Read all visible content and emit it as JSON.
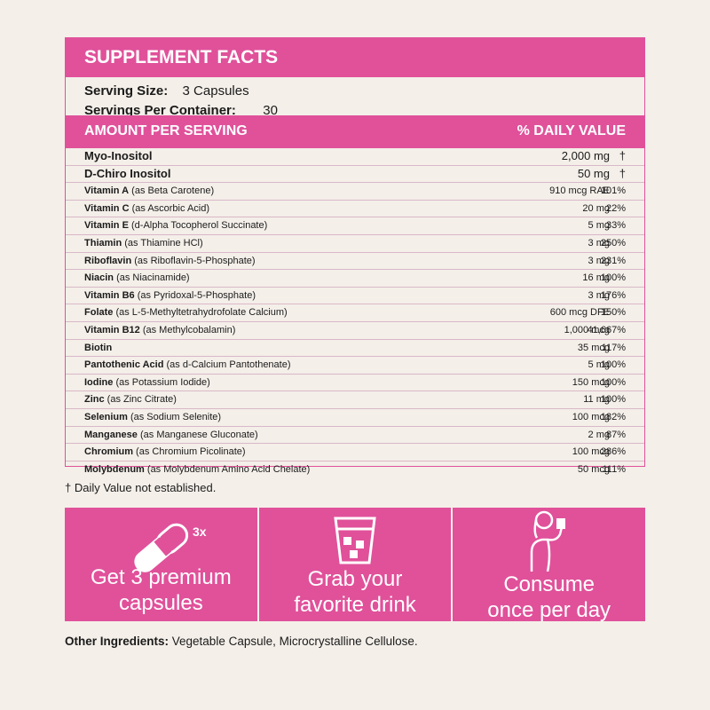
{
  "title": "SUPPLEMENT FACTS",
  "serving": {
    "size_label": "Serving Size:",
    "size_value": "3 Capsules",
    "per_container_label": "Servings Per Container:",
    "per_container_value": "30"
  },
  "columns": {
    "amount": "AMOUNT PER SERVING",
    "daily_value": "% DAILY VALUE"
  },
  "nutrients": [
    {
      "name": "Myo-Inositol",
      "detail": "",
      "amount": "2,000 mg",
      "dv": "†"
    },
    {
      "name": "D-Chiro Inositol",
      "detail": "",
      "amount": "50 mg",
      "dv": "†"
    },
    {
      "name": "Vitamin A",
      "detail": " (as Beta Carotene)",
      "amount": "910 mcg RAE",
      "dv": "101%"
    },
    {
      "name": "Vitamin C",
      "detail": " (as Ascorbic Acid)",
      "amount": "20 mg",
      "dv": "22%"
    },
    {
      "name": "Vitamin E",
      "detail": " (d-Alpha Tocopherol Succinate)",
      "amount": "5 mg",
      "dv": "33%"
    },
    {
      "name": "Thiamin",
      "detail": " (as Thiamine HCl)",
      "amount": "3 mg",
      "dv": "250%"
    },
    {
      "name": "Riboflavin",
      "detail": " (as Riboflavin-5-Phosphate)",
      "amount": "3 mg",
      "dv": "231%"
    },
    {
      "name": "Niacin",
      "detail": " (as Niacinamide)",
      "amount": "16 mg",
      "dv": "100%"
    },
    {
      "name": "Vitamin B6",
      "detail": " (as Pyridoxal-5-Phosphate)",
      "amount": "3 mg",
      "dv": "176%"
    },
    {
      "name": "Folate",
      "detail": " (as L-5-Methyltetrahydrofolate Calcium)",
      "amount": "600 mcg DFE",
      "dv": "150%"
    },
    {
      "name": "Vitamin B12",
      "detail": " (as Methylcobalamin)",
      "amount": "1,000 mcg",
      "dv": "41,667%"
    },
    {
      "name": "Biotin",
      "detail": "",
      "amount": "35 mcg",
      "dv": "117%"
    },
    {
      "name": "Pantothenic Acid",
      "detail": " (as d-Calcium Pantothenate)",
      "amount": "5 mg",
      "dv": "100%"
    },
    {
      "name": "Iodine",
      "detail": " (as Potassium Iodide)",
      "amount": "150 mcg",
      "dv": "100%"
    },
    {
      "name": "Zinc",
      "detail": " (as Zinc Citrate)",
      "amount": "11 mg",
      "dv": "100%"
    },
    {
      "name": "Selenium",
      "detail": " (as Sodium Selenite)",
      "amount": "100 mcg",
      "dv": "182%"
    },
    {
      "name": "Manganese",
      "detail": " (as Manganese Gluconate)",
      "amount": "2 mg",
      "dv": "87%"
    },
    {
      "name": "Chromium",
      "detail": " (as Chromium Picolinate)",
      "amount": "100 mcg",
      "dv": "286%"
    },
    {
      "name": "Molybdenum",
      "detail": " (as Molybdenum Amino Acid Chelate)",
      "amount": "50 mcg",
      "dv": "111%"
    }
  ],
  "footnote": "† Daily Value not established.",
  "steps": [
    {
      "icon": "capsule-icon",
      "badge": "3x",
      "line1": "Get 3 premium",
      "line2": "capsules"
    },
    {
      "icon": "drink-glass-icon",
      "line1": "Grab your",
      "line2": "favorite drink"
    },
    {
      "icon": "woman-drinking-icon",
      "line1": "Consume",
      "line2": "once per day"
    }
  ],
  "other_ingredients": {
    "label": "Other Ingredients:",
    "value": " Vegetable Capsule, Microcrystalline Cellulose."
  },
  "colors": {
    "accent": "#e0519a",
    "background": "#f4efe9",
    "row_divider": "#d9b8c8"
  }
}
